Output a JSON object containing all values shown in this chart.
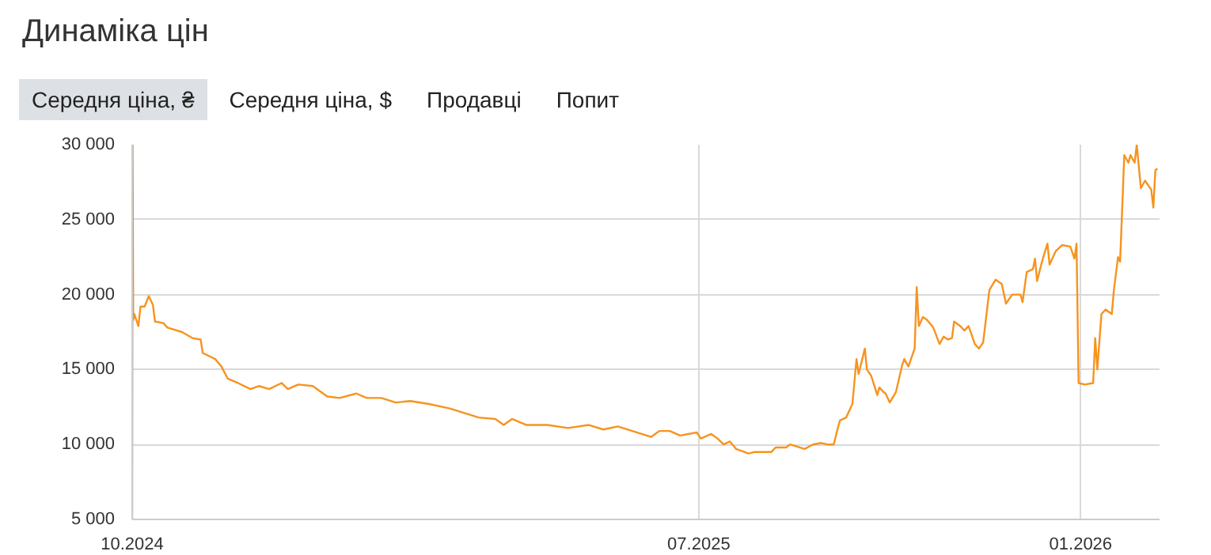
{
  "chart_data": {
    "type": "line",
    "title": "Динаміка цін",
    "annotations": [
      "Середня ціна, ₴",
      "Середня ціна, $",
      "Продавці",
      "Попит"
    ],
    "x": [
      "2024-10-01T00:00",
      "2024-10-01T05:00",
      "2024-10-01T12:00",
      "2024-10-02",
      "2024-10-04",
      "2024-10-05",
      "2024-10-07",
      "2024-10-09",
      "2024-10-11",
      "2024-10-12",
      "2024-10-16",
      "2024-10-18",
      "2024-10-25",
      "2024-10-30",
      "2024-11-03",
      "2024-11-04",
      "2024-11-10",
      "2024-11-13",
      "2024-11-16",
      "2024-11-21",
      "2024-11-27",
      "2024-12-01",
      "2024-12-06",
      "2024-12-12",
      "2024-12-15",
      "2024-12-20",
      "2024-12-27",
      "2025-01-03",
      "2025-01-09",
      "2025-01-17",
      "2025-01-22",
      "2025-01-29",
      "2025-02-05",
      "2025-02-12",
      "2025-02-21",
      "2025-03-03",
      "2025-03-10",
      "2025-03-17",
      "2025-03-25",
      "2025-03-29",
      "2025-04-02",
      "2025-04-09",
      "2025-04-16",
      "2025-04-19",
      "2025-04-29",
      "2025-05-09",
      "2025-05-16",
      "2025-05-23",
      "2025-06-08",
      "2025-06-12",
      "2025-06-17",
      "2025-06-22",
      "2025-06-30",
      "2025-07-02",
      "2025-07-07",
      "2025-07-10",
      "2025-07-13",
      "2025-07-16",
      "2025-07-19",
      "2025-07-25",
      "2025-07-28",
      "2025-08-05",
      "2025-08-07",
      "2025-08-12",
      "2025-08-14",
      "2025-08-21",
      "2025-08-25",
      "2025-08-29",
      "2025-09-01",
      "2025-09-04",
      "2025-09-06",
      "2025-09-07",
      "2025-09-10",
      "2025-09-13",
      "2025-09-15",
      "2025-09-16",
      "2025-09-19",
      "2025-09-20",
      "2025-09-22",
      "2025-09-25",
      "2025-09-26",
      "2025-09-28",
      "2025-09-29",
      "2025-10-01",
      "2025-10-04",
      "2025-10-07",
      "2025-10-08",
      "2025-10-10",
      "2025-10-12",
      "2025-10-13",
      "2025-10-14",
      "2025-10-15",
      "2025-10-17",
      "2025-10-19",
      "2025-10-22",
      "2025-10-25",
      "2025-10-27",
      "2025-10-29",
      "2025-10-31",
      "2025-11-01",
      "2025-11-04",
      "2025-11-06",
      "2025-11-08",
      "2025-11-11",
      "2025-11-13",
      "2025-11-15",
      "2025-11-18",
      "2025-11-21",
      "2025-11-24",
      "2025-11-26",
      "2025-11-29",
      "2025-12-03",
      "2025-12-04",
      "2025-12-06",
      "2025-12-09",
      "2025-12-10",
      "2025-12-11",
      "2025-12-13",
      "2025-12-14",
      "2025-12-16",
      "2025-12-17",
      "2025-12-20",
      "2025-12-23",
      "2025-12-27",
      "2025-12-29",
      "2025-12-30",
      "2025-12-31",
      "2026-01-03",
      "2026-01-07",
      "2026-01-08",
      "2026-01-09",
      "2026-01-11",
      "2026-01-13",
      "2026-01-16",
      "2026-01-17",
      "2026-01-19",
      "2026-01-20",
      "2026-01-22",
      "2026-01-24",
      "2026-01-25",
      "2026-01-27",
      "2026-01-28",
      "2026-01-30",
      "2026-02-01",
      "2026-02-03",
      "2026-02-04",
      "2026-02-05",
      "2026-02-06",
      "2026-02-07"
    ],
    "series": [
      {
        "color": "#f7931e",
        "values": [
          5000,
          30000,
          18300,
          18700,
          17900,
          19200,
          19200,
          19900,
          19300,
          18200,
          18100,
          17800,
          17500,
          17100,
          17000,
          16100,
          15700,
          15200,
          14400,
          14100,
          13700,
          13900,
          13700,
          14100,
          13700,
          14000,
          13900,
          13200,
          13100,
          13400,
          13100,
          13100,
          12800,
          12900,
          12700,
          12400,
          12100,
          11800,
          11700,
          11300,
          11700,
          11300,
          11300,
          11300,
          11100,
          11300,
          11000,
          11200,
          10500,
          10900,
          10900,
          10600,
          10800,
          10400,
          10700,
          10400,
          10000,
          10200,
          9700,
          9400,
          9500,
          9500,
          9800,
          9800,
          10000,
          9700,
          10000,
          10100,
          10000,
          10000,
          11100,
          11600,
          11800,
          12700,
          15700,
          14700,
          16400,
          15000,
          14600,
          13300,
          13800,
          13500,
          13400,
          12800,
          13500,
          15300,
          15700,
          15200,
          16000,
          16400,
          20500,
          17900,
          18500,
          18300,
          17800,
          16700,
          17200,
          17000,
          17100,
          18200,
          17900,
          17600,
          17900,
          16700,
          16400,
          16800,
          20300,
          21000,
          20700,
          19400,
          20000,
          20000,
          19500,
          21500,
          21700,
          22400,
          20900,
          22000,
          22500,
          23400,
          22000,
          22900,
          23300,
          23200,
          22400,
          23400,
          14100,
          14000,
          14100,
          17100,
          15000,
          18700,
          19000,
          18700,
          20300,
          22500,
          22200,
          29300,
          28800,
          29300,
          28800,
          30000,
          27100,
          27600,
          27200,
          27000,
          25800,
          28300,
          28400
        ]
      }
    ],
    "xlim": [
      "2024-10-01",
      "2026-02-08"
    ],
    "ylim": [
      5000,
      30000
    ],
    "xticks": [
      {
        "value": "2024-10-01",
        "label": "10.2024"
      },
      {
        "value": "2025-07-01",
        "label": "07.2025"
      },
      {
        "value": "2026-01-01",
        "label": "01.2026"
      }
    ],
    "yticks": [
      {
        "value": 5000,
        "label": "5 000"
      },
      {
        "value": 10000,
        "label": "10 000"
      },
      {
        "value": 15000,
        "label": "15 000"
      },
      {
        "value": 20000,
        "label": "20 000"
      },
      {
        "value": 25000,
        "label": "25 000"
      },
      {
        "value": 30000,
        "label": "30 000"
      }
    ],
    "grid": true
  }
}
